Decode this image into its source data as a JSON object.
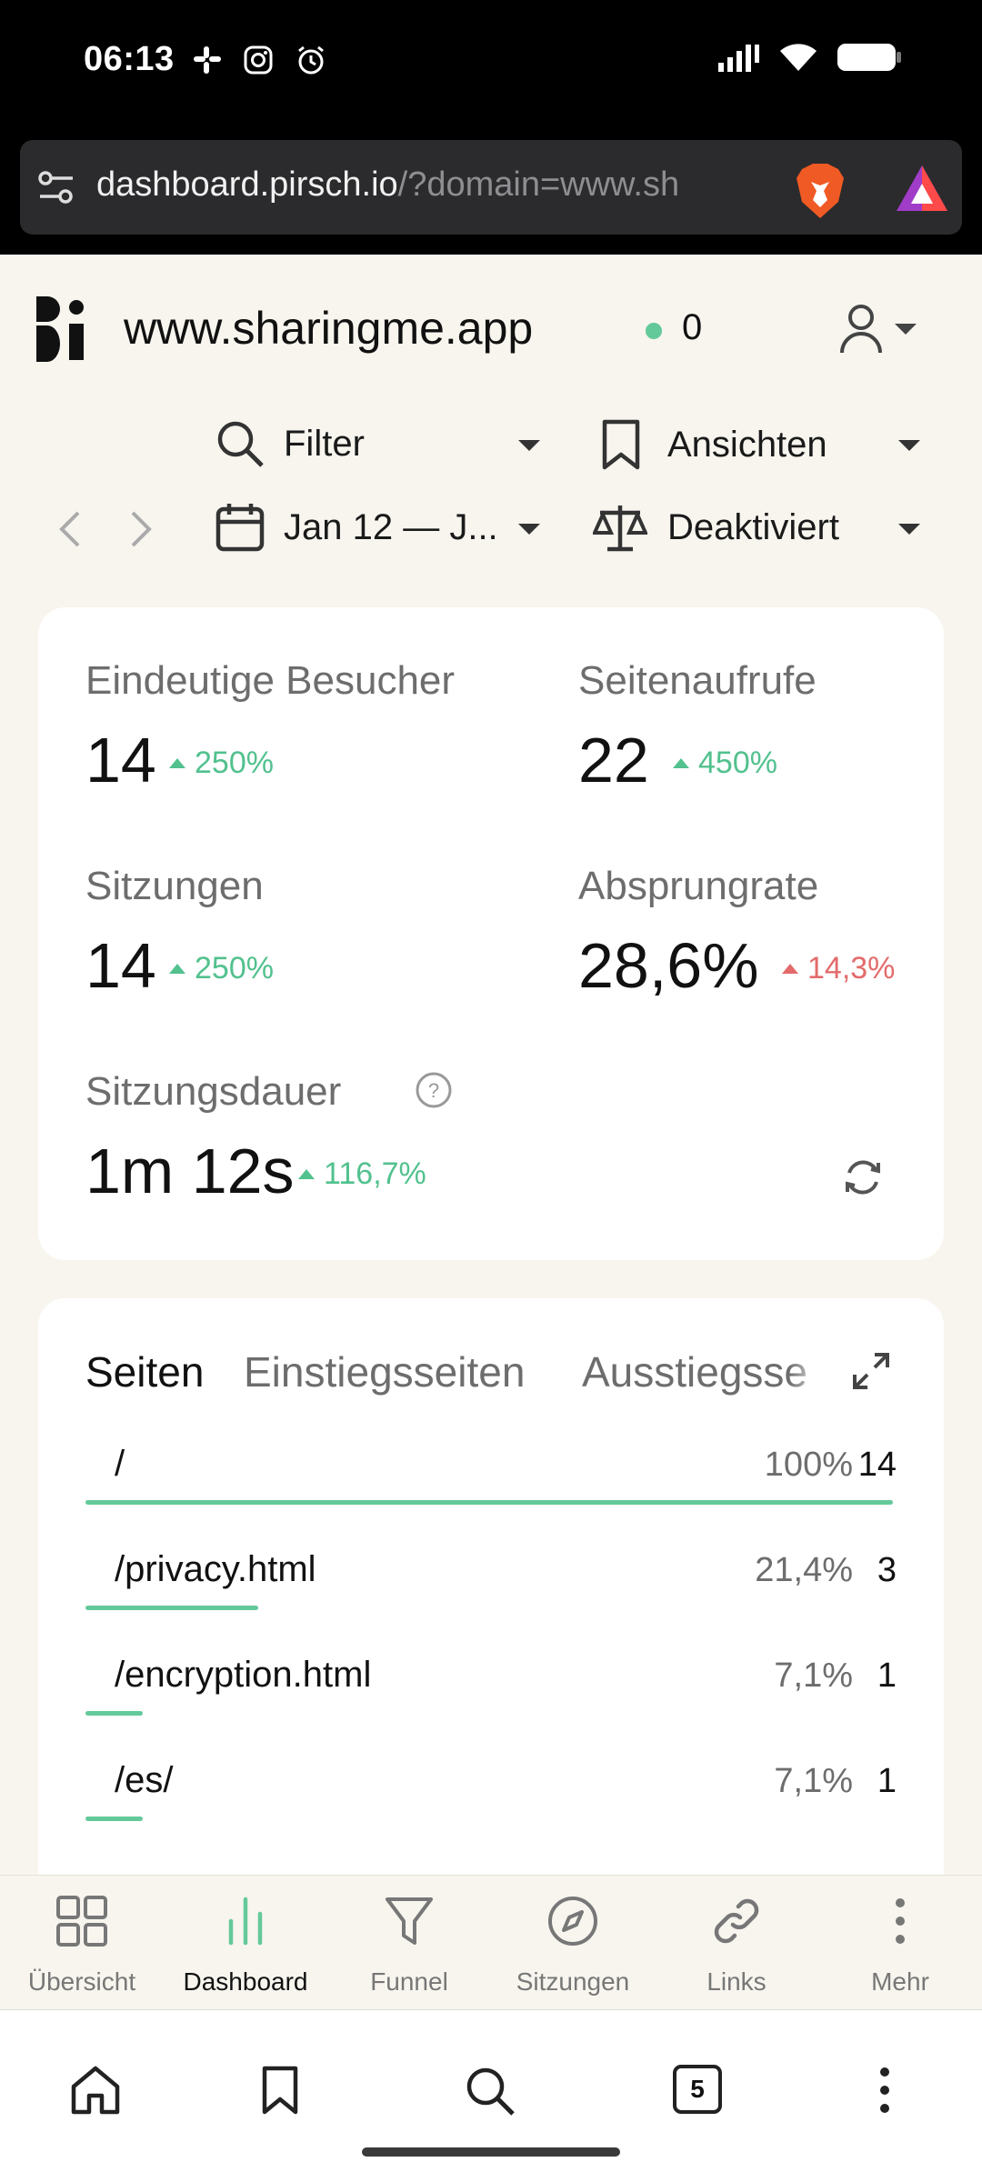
{
  "status_bar": {
    "time": "06:13",
    "icons": [
      "slack-icon",
      "instagram-icon",
      "alarm-icon",
      "signal-icon",
      "wifi-icon",
      "battery-icon"
    ]
  },
  "browser": {
    "url_host": "dashboard.pirsch.io",
    "url_rest": "/?domain=www.sh",
    "tab_count": "5"
  },
  "header": {
    "site": "www.sharingme.app",
    "live_visitors": "0",
    "live_color": "#64c99a"
  },
  "toolbar": {
    "filter_label": "Filter",
    "views_label": "Ansichten",
    "date_label": "Jan 12 — J...",
    "compare_label": "Deaktiviert"
  },
  "stats": [
    {
      "label": "Eindeutige Besucher",
      "value": "14",
      "change": "250%",
      "trend": "up"
    },
    {
      "label": "Seitenaufrufe",
      "value": "22",
      "change": "450%",
      "trend": "up"
    },
    {
      "label": "Sitzungen",
      "value": "14",
      "change": "250%",
      "trend": "up"
    },
    {
      "label": "Absprungrate",
      "value": "28,6%",
      "change": "14,3%",
      "trend": "bad"
    },
    {
      "label": "Sitzungsdauer",
      "value": "1m 12s",
      "change": "116,7%",
      "trend": "up"
    }
  ],
  "pages_panel": {
    "tabs": [
      "Seiten",
      "Einstiegsseiten",
      "Ausstiegsse"
    ],
    "rows": [
      {
        "path": "/",
        "percent": "100%",
        "count": "14",
        "share": 1.0
      },
      {
        "path": "/privacy.html",
        "percent": "21,4%",
        "count": "3",
        "share": 0.214
      },
      {
        "path": "/encryption.html",
        "percent": "7,1%",
        "count": "1",
        "share": 0.071
      },
      {
        "path": "/es/",
        "percent": "7,1%",
        "count": "1",
        "share": 0.071
      }
    ]
  },
  "app_nav": [
    "Übersicht",
    "Dashboard",
    "Funnel",
    "Sitzungen",
    "Links",
    "Mehr"
  ],
  "colors": {
    "accent": "#64c99a",
    "negative": "#e36b6b"
  }
}
